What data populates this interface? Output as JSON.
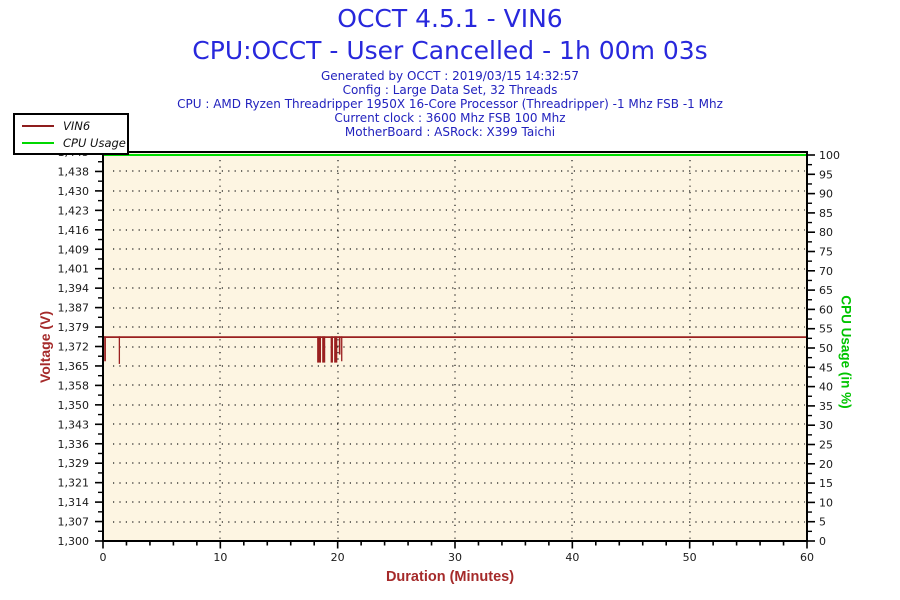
{
  "header": {
    "title": "OCCT 4.5.1 - VIN6",
    "subtitle": "CPU:OCCT - User Cancelled - 1h 00m 03s",
    "info": [
      "Generated by OCCT : 2019/03/15 14:32:57",
      "Config : Large Data Set, 32 Threads",
      "CPU : AMD Ryzen Threadripper 1950X 16-Core Processor (Threadripper) -1 Mhz FSB -1 Mhz",
      "Current clock : 3600 Mhz FSB 100 Mhz",
      "MotherBoard : ASRock: X399 Taichi"
    ]
  },
  "legend": {
    "items": [
      {
        "label": "VIN6",
        "color": "#8E1D1D"
      },
      {
        "label": "CPU Usage",
        "color": "#00D800"
      }
    ]
  },
  "colors": {
    "title_blue": "#2828DC",
    "info_blue": "#2222BE",
    "axis_red": "#A52A2A",
    "axis_green": "#00C400",
    "plot_bg": "#FDF5E2",
    "grid_dot": "#1A1A1A",
    "vin6_line": "#9A2020",
    "cpu_line": "#00DC00",
    "tick_label": "#1A1A1A",
    "spine": "#000000"
  },
  "chart_data": {
    "type": "line",
    "x_axis": {
      "title": "Duration (Minutes)",
      "min": 0,
      "max": 60,
      "major_ticks": [
        "0",
        "10",
        "20",
        "30",
        "40",
        "50",
        "60"
      ],
      "minor_step_minutes": 2
    },
    "y_left": {
      "title": "Voltage (V)",
      "min": 1.3,
      "max": 1.445,
      "tick_labels": [
        "1,445",
        "1,438",
        "1,430",
        "1,423",
        "1,416",
        "1,409",
        "1,401",
        "1,394",
        "1,387",
        "1,379",
        "1,372",
        "1,365",
        "1,358",
        "1,350",
        "1,343",
        "1,336",
        "1,329",
        "1,321",
        "1,314",
        "1,307",
        "1,300"
      ]
    },
    "y_right": {
      "title": "CPU Usage (in %)",
      "min": 0,
      "max": 100,
      "tick_labels": [
        "100",
        "95",
        "90",
        "85",
        "80",
        "75",
        "70",
        "65",
        "60",
        "55",
        "50",
        "45",
        "40",
        "35",
        "30",
        "25",
        "20",
        "15",
        "10",
        "5",
        "0"
      ]
    },
    "series": [
      {
        "name": "VIN6",
        "axis": "left",
        "baseline_v": 1.376,
        "dips": [
          {
            "from_min": 0.1,
            "to_min": 0.25,
            "low_v": 1.367
          },
          {
            "from_min": 1.34,
            "to_min": 1.45,
            "low_v": 1.366
          },
          {
            "from_min": 18.25,
            "to_min": 18.58,
            "low_v": 1.3665
          },
          {
            "from_min": 18.68,
            "to_min": 18.94,
            "low_v": 1.3665
          },
          {
            "from_min": 19.4,
            "to_min": 19.6,
            "low_v": 1.3665
          },
          {
            "from_min": 19.7,
            "to_min": 19.97,
            "low_v": 1.3665
          },
          {
            "from_min": 20.1,
            "to_min": 20.24,
            "low_v": 1.3695
          },
          {
            "from_min": 20.29,
            "to_min": 20.36,
            "low_v": 1.367
          }
        ]
      },
      {
        "name": "CPU Usage",
        "axis": "right",
        "constant_pct": 100
      }
    ]
  }
}
